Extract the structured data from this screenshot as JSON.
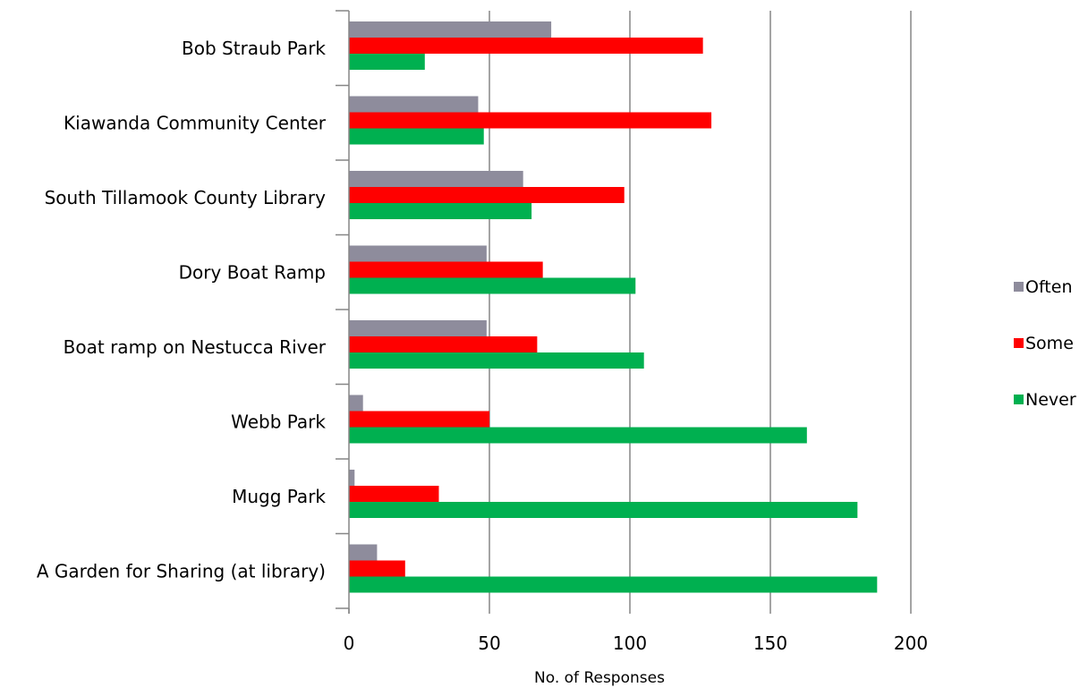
{
  "chart_data": {
    "type": "bar",
    "orientation": "horizontal",
    "title": "",
    "xlabel": "No. of  Responses",
    "ylabel": "",
    "xlim": [
      0,
      200
    ],
    "x_ticks": [
      0,
      50,
      100,
      150,
      200
    ],
    "grid": "vertical major gridlines",
    "legend_position": "right",
    "categories": [
      "Bob Straub Park",
      "Kiawanda Community Center",
      "South Tillamook County Library",
      "Dory Boat Ramp",
      "Boat ramp on Nestucca River",
      "Webb Park",
      "Mugg Park",
      "A Garden for Sharing (at library)"
    ],
    "series": [
      {
        "name": "Often",
        "color": "#8E8C9C",
        "values": [
          72,
          46,
          62,
          49,
          49,
          5,
          2,
          10
        ]
      },
      {
        "name": "Some",
        "color": "#FF0000",
        "values": [
          126,
          129,
          98,
          69,
          67,
          50,
          32,
          20
        ]
      },
      {
        "name": "Never",
        "color": "#00B050",
        "values": [
          27,
          48,
          65,
          102,
          105,
          163,
          181,
          188
        ]
      }
    ]
  }
}
